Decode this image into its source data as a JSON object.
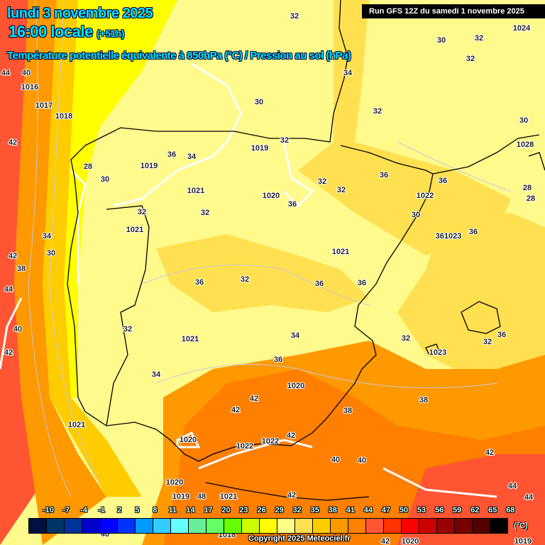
{
  "header": {
    "date": "lundi 3 novembre 2025",
    "time": "16:00 locale",
    "lead": "(+51h)",
    "parameter": "Température potentielle équivalente à 850hPa (°C) / Pression au sol (hPa)",
    "run": "Run GFS 12Z du samedi 1 novembre 2025"
  },
  "colors": {
    "title": "#00e6ff",
    "land_pale": "#fffa8c",
    "land_gold": "#ffe050",
    "orange": "#ff9900",
    "dark_orange": "#ff7f00",
    "red": "#ff5533",
    "yellow": "#ffff00"
  },
  "legend": {
    "unit": "(°C)",
    "ticks": [
      "-10",
      "-7",
      "-4",
      "-1",
      "2",
      "5",
      "8",
      "11",
      "14",
      "17",
      "20",
      "23",
      "26",
      "29",
      "32",
      "35",
      "38",
      "41",
      "44",
      "47",
      "50",
      "53",
      "56",
      "59",
      "62",
      "65",
      "68"
    ],
    "colors": [
      "#001040",
      "#003366",
      "#003399",
      "#0000cc",
      "#0000ff",
      "#0033ff",
      "#0099ff",
      "#33ccff",
      "#66ffff",
      "#66ee99",
      "#66ff66",
      "#66ff00",
      "#ccff00",
      "#ffff00",
      "#ffff88",
      "#ffe050",
      "#ffcc00",
      "#ff9900",
      "#ff7f00",
      "#ff5533",
      "#ff3300",
      "#ff0000",
      "#cc0000",
      "#990000",
      "#770000",
      "#550000",
      "#000000"
    ]
  },
  "contour_labels": [
    "32",
    "30",
    "32",
    "1024",
    "32",
    "34",
    "40",
    "44",
    "1016",
    "30",
    "1017",
    "1018",
    "32",
    "30",
    "42",
    "32",
    "1019",
    "1028",
    "1019",
    "36",
    "34",
    "28",
    "30",
    "36",
    "32",
    "32",
    "36",
    "1021",
    "1020",
    "36",
    "1022",
    "28",
    "28",
    "32",
    "32",
    "30",
    "1021",
    "361023",
    "36",
    "34",
    "42",
    "30",
    "1021",
    "38",
    "36",
    "32",
    "36",
    "36",
    "44",
    "32",
    "40",
    "1021",
    "34",
    "32",
    "36",
    "32",
    "42",
    "1023",
    "36",
    "34",
    "1020",
    "42",
    "38",
    "42",
    "38",
    "1021",
    "1020",
    "1022",
    "1022",
    "42",
    "42",
    "40",
    "40",
    "1020",
    "44",
    "1019",
    "48",
    "1021",
    "42",
    "44",
    "40",
    "1018",
    "42",
    "1020",
    "1019"
  ],
  "copyright": "Copyright 2025 Meteociel.fr"
}
